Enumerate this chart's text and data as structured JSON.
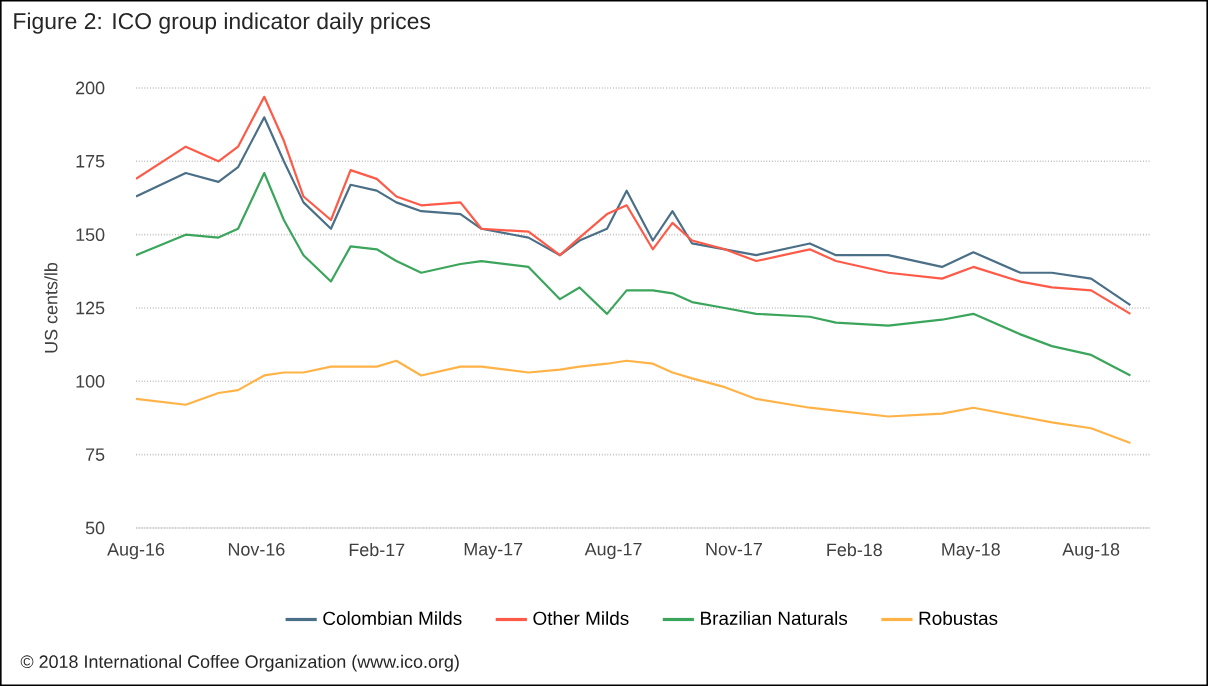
{
  "chart_data": {
    "type": "line",
    "title": "Figure 2: ICO group indicator daily prices",
    "ylabel": "US cents/lb",
    "x": [
      "2016-08-01",
      "2016-09-08",
      "2016-10-03",
      "2016-10-18",
      "2016-11-07",
      "2016-11-22",
      "2016-12-07",
      "2016-12-28",
      "2017-01-12",
      "2017-02-01",
      "2017-02-16",
      "2017-03-07",
      "2017-04-06",
      "2017-04-22",
      "2017-05-28",
      "2017-06-21",
      "2017-07-06",
      "2017-07-27",
      "2017-08-11",
      "2017-08-31",
      "2017-09-15",
      "2017-09-30",
      "2017-10-25",
      "2017-11-18",
      "2017-12-29",
      "2018-01-18",
      "2018-02-27",
      "2018-04-09",
      "2018-05-03",
      "2018-06-08",
      "2018-07-02",
      "2018-08-01",
      "2018-08-31"
    ],
    "series": [
      {
        "name": "Colombian Milds",
        "color": "#4a6f86",
        "values": [
          163,
          171,
          168,
          173,
          190,
          175,
          161,
          152,
          167,
          165,
          161,
          158,
          157,
          152,
          149,
          143,
          148,
          152,
          165,
          148,
          158,
          147,
          145,
          143,
          147,
          143,
          143,
          139,
          144,
          137,
          137,
          135,
          126
        ]
      },
      {
        "name": "Other Milds",
        "color": "#ff5a47",
        "values": [
          169,
          180,
          175,
          180,
          197,
          182,
          163,
          155,
          172,
          169,
          163,
          160,
          161,
          152,
          151,
          143,
          149,
          157,
          160,
          145,
          154,
          148,
          145,
          141,
          145,
          141,
          137,
          135,
          139,
          134,
          132,
          131,
          123
        ]
      },
      {
        "name": "Brazilian Naturals",
        "color": "#3ba55c",
        "values": [
          143,
          150,
          149,
          152,
          171,
          155,
          143,
          134,
          146,
          145,
          141,
          137,
          140,
          141,
          139,
          128,
          132,
          123,
          131,
          131,
          130,
          127,
          125,
          123,
          122,
          120,
          119,
          121,
          123,
          116,
          112,
          109,
          102
        ]
      },
      {
        "name": "Robustas",
        "color": "#ffb347",
        "values": [
          94,
          92,
          96,
          97,
          102,
          103,
          103,
          105,
          105,
          105,
          107,
          102,
          105,
          105,
          103,
          104,
          105,
          106,
          107,
          106,
          103,
          101,
          98,
          94,
          91,
          90,
          88,
          89,
          91,
          88,
          86,
          84,
          79
        ]
      }
    ],
    "xlim": [
      "2016-08-01",
      "2018-09-15"
    ],
    "xticks": [
      {
        "value": "2016-08-01",
        "label": "Aug-16"
      },
      {
        "value": "2016-11-01",
        "label": "Nov-16"
      },
      {
        "value": "2017-02-01",
        "label": "Feb-17"
      },
      {
        "value": "2017-05-01",
        "label": "May-17"
      },
      {
        "value": "2017-08-01",
        "label": "Aug-17"
      },
      {
        "value": "2017-11-01",
        "label": "Nov-17"
      },
      {
        "value": "2018-02-01",
        "label": "Feb-18"
      },
      {
        "value": "2018-05-01",
        "label": "May-18"
      },
      {
        "value": "2018-08-01",
        "label": "Aug-18"
      }
    ],
    "ylim": [
      50,
      200
    ],
    "yticks": [
      50,
      75,
      100,
      125,
      150,
      175,
      200
    ],
    "grid": "y",
    "legend": "bottom",
    "marker": "none",
    "line_style": "solid",
    "annotations": [
      "© 2018 International Coffee Organization (www.ico.org)"
    ]
  }
}
